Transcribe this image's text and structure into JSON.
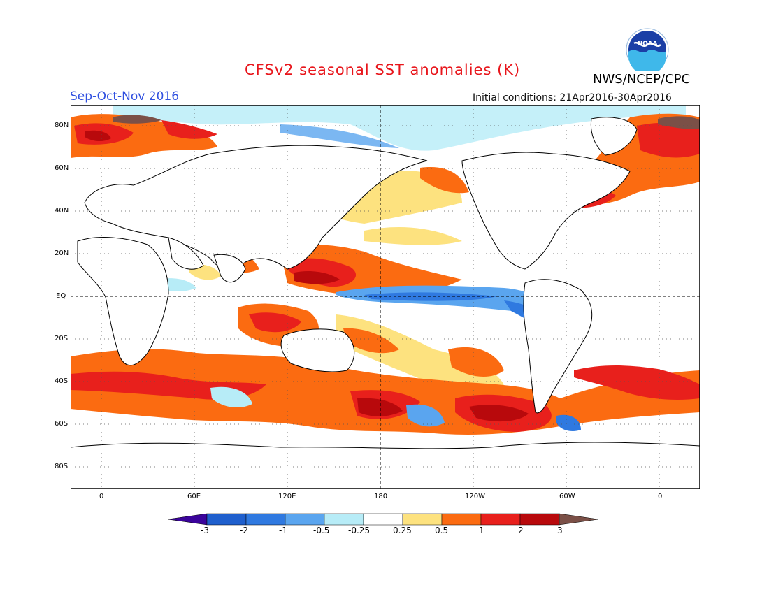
{
  "title": "CFSv2 seasonal SST anomalies (K)",
  "agency": "NWS/NCEP/CPC",
  "logo_text": "NOAA",
  "season": "Sep-Oct-Nov 2016",
  "initial_conditions": "Initial conditions: 21Apr2016-30Apr2016",
  "latitude_labels": [
    "80N",
    "60N",
    "40N",
    "20N",
    "EQ",
    "20S",
    "40S",
    "60S",
    "80S"
  ],
  "longitude_labels": [
    "0",
    "60E",
    "120E",
    "180",
    "120W",
    "60W",
    "0"
  ],
  "colorbar": {
    "labels": [
      "-3",
      "-2",
      "-1",
      "-0.5",
      "-0.25",
      "0.25",
      "0.5",
      "1",
      "2",
      "3"
    ],
    "colors": [
      "#3b049b",
      "#1f5fcd",
      "#2f79e0",
      "#5aa5ef",
      "#b7ecf7",
      "#ffffff",
      "#fde27f",
      "#fb6b11",
      "#e8201c",
      "#b8090c",
      "#7b5047"
    ]
  },
  "colors": {
    "title": "#e8151b",
    "season": "#2f4fe0",
    "land_outline": "#000000",
    "ocean_background": "#ffffff"
  }
}
